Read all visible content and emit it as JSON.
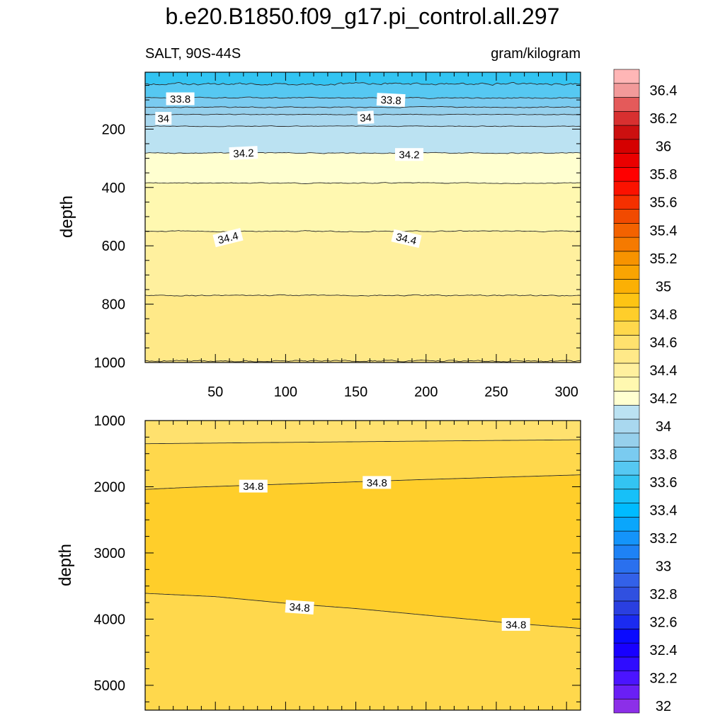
{
  "chart_data": {
    "type": "contour",
    "title": "b.e20.B1850.f09_g17.pi_control.all.297",
    "variable_label": "SALT, 90S-44S",
    "units_label": "gram/kilogram",
    "colorbar": {
      "levels": [
        32.0,
        32.1,
        32.2,
        32.3,
        32.4,
        32.5,
        32.6,
        32.7,
        32.8,
        32.9,
        33.0,
        33.1,
        33.2,
        33.3,
        33.4,
        33.5,
        33.6,
        33.7,
        33.8,
        33.9,
        34.0,
        34.1,
        34.2,
        34.3,
        34.4,
        34.5,
        34.6,
        34.7,
        34.8,
        34.9,
        35.0,
        35.1,
        35.2,
        35.3,
        35.4,
        35.5,
        35.6,
        35.7,
        35.8,
        35.9,
        36.0,
        36.1,
        36.2,
        36.3,
        36.4,
        36.5
      ],
      "labels": [
        "32",
        "32.2",
        "32.4",
        "32.6",
        "32.8",
        "33",
        "33.2",
        "33.4",
        "33.6",
        "33.8",
        "34",
        "34.2",
        "34.4",
        "34.6",
        "34.8",
        "35",
        "35.2",
        "35.4",
        "35.6",
        "35.8",
        "36",
        "36.2",
        "36.4"
      ],
      "colors": [
        "#8c2fe8",
        "#6a1ff5",
        "#4b14ff",
        "#2f0cff",
        "#1800ff",
        "#0a0aff",
        "#1b2bf0",
        "#2a3fe0",
        "#3050e0",
        "#3361e8",
        "#2a70ee",
        "#1e82f5",
        "#1494fa",
        "#0aa6fc",
        "#00bbff",
        "#17c0f8",
        "#33c4f2",
        "#56c8f2",
        "#7acbf0",
        "#96d0ec",
        "#a9d8ef",
        "#bbe2f2",
        "#ffffd0",
        "#fff8b0",
        "#fff09e",
        "#ffe988",
        "#ffe16e",
        "#ffd84c",
        "#ffce2a",
        "#fdc414",
        "#fbb005",
        "#f9a402",
        "#f79300",
        "#f57a00",
        "#f36200",
        "#f14a00",
        "#f53000",
        "#fb1200",
        "#ff0000",
        "#ea0000",
        "#d50000",
        "#cc1010",
        "#d83030",
        "#e45a5a",
        "#f29a9a",
        "#ffb6b6"
      ]
    },
    "top_panel": {
      "xlabel": "",
      "ylabel": "depth",
      "xlim": [
        0,
        310
      ],
      "ylim": [
        1000,
        5
      ],
      "xticks": [
        50,
        100,
        150,
        200,
        250,
        300
      ],
      "xtick_labels": [
        "50",
        "100",
        "150",
        "200",
        "250",
        "300"
      ],
      "yticks": [
        200,
        400,
        600,
        800,
        1000
      ],
      "ytick_labels": [
        "200",
        "400",
        "600",
        "800",
        "1000"
      ],
      "bands": [
        {
          "lo": 33.6,
          "top": 5,
          "bottom": 45
        },
        {
          "lo": 33.7,
          "top": 45,
          "bottom": 93
        },
        {
          "lo": 33.8,
          "top": 93,
          "bottom": 125
        },
        {
          "lo": 33.9,
          "top": 125,
          "bottom": 150
        },
        {
          "lo": 34.0,
          "top": 150,
          "bottom": 190
        },
        {
          "lo": 34.1,
          "top": 190,
          "bottom": 282
        },
        {
          "lo": 34.2,
          "top": 282,
          "bottom": 385
        },
        {
          "lo": 34.3,
          "top": 385,
          "bottom": 550
        },
        {
          "lo": 34.4,
          "top": 550,
          "bottom": 770
        },
        {
          "lo": 34.5,
          "top": 770,
          "bottom": 1000
        }
      ],
      "contours": [
        {
          "level": 33.7,
          "depth": 45,
          "wiggle": 6,
          "seed": 1
        },
        {
          "level": 33.8,
          "depth": 93,
          "wiggle": 3,
          "seed": 2
        },
        {
          "level": 33.9,
          "depth": 125,
          "wiggle": 2.5,
          "seed": 3
        },
        {
          "level": 34.0,
          "depth": 150,
          "wiggle": 2,
          "seed": 4
        },
        {
          "level": 34.1,
          "depth": 190,
          "wiggle": 2,
          "seed": 5
        },
        {
          "level": 34.2,
          "depth": 282,
          "wiggle": 2.5,
          "seed": 6
        },
        {
          "level": 34.3,
          "depth": 385,
          "wiggle": 2.5,
          "seed": 7
        },
        {
          "level": 34.4,
          "depth": 550,
          "wiggle": 3,
          "seed": 8
        },
        {
          "level": 34.5,
          "depth": 770,
          "wiggle": 3,
          "seed": 9
        },
        {
          "level": 34.6,
          "depth": 995,
          "wiggle": 4,
          "seed": 10
        }
      ],
      "contour_labels": [
        {
          "text": "33.8",
          "x": 25,
          "depth": 96,
          "angle": 0
        },
        {
          "text": "33.8",
          "x": 175,
          "depth": 100,
          "angle": 3
        },
        {
          "text": "34",
          "x": 13,
          "depth": 163,
          "angle": 0
        },
        {
          "text": "34",
          "x": 157,
          "depth": 160,
          "angle": -3
        },
        {
          "text": "34.2",
          "x": 70,
          "depth": 282,
          "angle": -3
        },
        {
          "text": "34.2",
          "x": 188,
          "depth": 287,
          "angle": 0
        },
        {
          "text": "34.4",
          "x": 59,
          "depth": 572,
          "angle": -14
        },
        {
          "text": "34.4",
          "x": 186,
          "depth": 575,
          "angle": 13
        }
      ]
    },
    "bottom_panel": {
      "xlabel": "",
      "ylabel": "depth",
      "xlim": [
        0,
        310
      ],
      "ylim": [
        5375,
        1000
      ],
      "xticks": [
        50,
        100,
        150,
        200,
        250,
        300
      ],
      "xtick_labels": [],
      "yticks": [
        1000,
        2000,
        3000,
        4000,
        5000
      ],
      "ytick_labels": [
        "1000",
        "2000",
        "3000",
        "4000",
        "5000"
      ],
      "bands": [
        {
          "lo": 34.6,
          "boundary_top": [
            [
              0,
              1000
            ],
            [
              310,
              1000
            ]
          ],
          "boundary_bottom": [
            [
              0,
              1350
            ],
            [
              310,
              1290
            ]
          ]
        },
        {
          "lo": 34.7,
          "boundary_top": [
            [
              0,
              1350
            ],
            [
              310,
              1290
            ]
          ],
          "boundary_bottom": [
            [
              0,
              2040
            ],
            [
              30,
              2010
            ],
            [
              100,
              1960
            ],
            [
              200,
              1890
            ],
            [
              310,
              1820
            ]
          ]
        },
        {
          "lo": 34.8,
          "boundary_top": [
            [
              0,
              2040
            ],
            [
              30,
              2010
            ],
            [
              100,
              1960
            ],
            [
              200,
              1890
            ],
            [
              310,
              1820
            ]
          ],
          "boundary_bottom": [
            [
              0,
              3610
            ],
            [
              50,
              3660
            ],
            [
              100,
              3760
            ],
            [
              150,
              3840
            ],
            [
              200,
              3940
            ],
            [
              260,
              4060
            ],
            [
              310,
              4140
            ]
          ]
        },
        {
          "lo": 34.7,
          "boundary_top": [
            [
              0,
              3610
            ],
            [
              50,
              3660
            ],
            [
              100,
              3760
            ],
            [
              150,
              3840
            ],
            [
              200,
              3940
            ],
            [
              260,
              4060
            ],
            [
              310,
              4140
            ]
          ],
          "boundary_bottom": [
            [
              0,
              5375
            ],
            [
              310,
              5375
            ]
          ]
        }
      ],
      "contours": [
        {
          "level": 34.7,
          "points": [
            [
              0,
              1350
            ],
            [
              100,
              1330
            ],
            [
              200,
              1310
            ],
            [
              310,
              1290
            ]
          ]
        },
        {
          "level": 34.8,
          "points": [
            [
              0,
              2040
            ],
            [
              30,
              2010
            ],
            [
              100,
              1960
            ],
            [
              200,
              1890
            ],
            [
              310,
              1820
            ]
          ]
        },
        {
          "level": 34.8,
          "points": [
            [
              0,
              3610
            ],
            [
              50,
              3660
            ],
            [
              100,
              3760
            ],
            [
              150,
              3840
            ],
            [
              200,
              3940
            ],
            [
              260,
              4060
            ],
            [
              310,
              4140
            ]
          ]
        }
      ],
      "contour_labels": [
        {
          "text": "34.8",
          "x": 77,
          "depth": 1990,
          "angle": 0
        },
        {
          "text": "34.8",
          "x": 165,
          "depth": 1935,
          "angle": 0
        },
        {
          "text": "34.8",
          "x": 110,
          "depth": 3820,
          "angle": 4
        },
        {
          "text": "34.8",
          "x": 264,
          "depth": 4080,
          "angle": 0
        }
      ]
    }
  }
}
